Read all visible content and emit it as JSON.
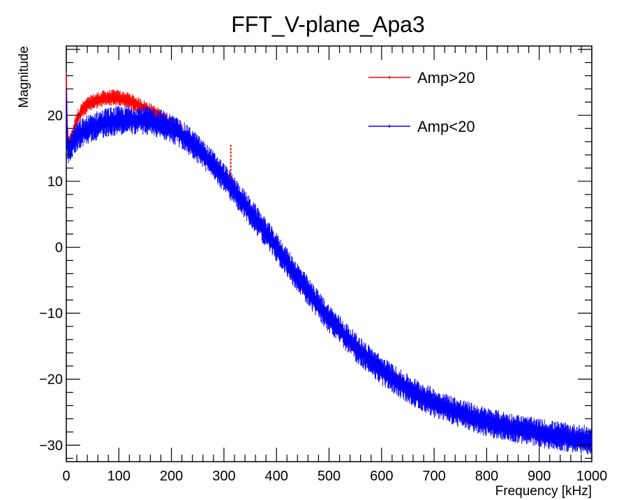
{
  "chart_data": {
    "type": "line",
    "title": "FFT_V-plane_Apa3",
    "xlabel": "Frequency [kHz]",
    "ylabel": "Magnitude",
    "xlim": [
      0,
      1000
    ],
    "ylim": [
      -32.5,
      30.5
    ],
    "x_ticks": [
      0,
      100,
      200,
      300,
      400,
      500,
      600,
      700,
      800,
      900,
      1000
    ],
    "y_ticks": [
      -30,
      -20,
      -10,
      0,
      10,
      20
    ],
    "grid": false,
    "legend_position": "top-right",
    "x": [
      0,
      2,
      5,
      10,
      15,
      20,
      30,
      40,
      50,
      60,
      80,
      100,
      120,
      140,
      160,
      180,
      200,
      220,
      240,
      260,
      280,
      300,
      320,
      340,
      360,
      380,
      400,
      420,
      440,
      460,
      480,
      500,
      550,
      600,
      650,
      700,
      750,
      800,
      850,
      900,
      950,
      1000
    ],
    "series": [
      {
        "name": "Amp>20",
        "color": "#ff0000",
        "values": [
          26.0,
          17.5,
          15.5,
          16.5,
          18.0,
          19.5,
          20.8,
          21.5,
          22.0,
          22.3,
          22.7,
          22.6,
          22.2,
          21.4,
          20.6,
          19.7,
          18.6,
          17.2,
          15.7,
          14.1,
          12.4,
          10.6,
          8.5,
          6.4,
          4.3,
          2.2,
          0.0,
          -2.3,
          -4.5,
          -6.7,
          -8.8,
          -10.8,
          -15.1,
          -18.7,
          -21.5,
          -23.6,
          -25.2,
          -26.5,
          -27.4,
          -28.2,
          -28.8,
          -29.3
        ]
      },
      {
        "name": "Amp<20",
        "color": "#0000ff",
        "values": [
          22.0,
          15.0,
          14.8,
          15.5,
          16.2,
          16.8,
          17.4,
          17.8,
          18.2,
          18.5,
          19.0,
          19.2,
          19.3,
          19.3,
          19.1,
          18.7,
          18.0,
          17.0,
          15.7,
          14.1,
          12.4,
          10.6,
          8.5,
          6.4,
          4.3,
          2.2,
          0.0,
          -2.3,
          -4.5,
          -6.7,
          -8.8,
          -10.8,
          -15.1,
          -18.7,
          -21.5,
          -23.6,
          -25.2,
          -26.5,
          -27.4,
          -28.2,
          -28.8,
          -29.3
        ]
      }
    ],
    "annotations": [
      {
        "series": "Amp>20",
        "x": 313,
        "y_from": 10.5,
        "y_to": 15.5
      }
    ]
  }
}
